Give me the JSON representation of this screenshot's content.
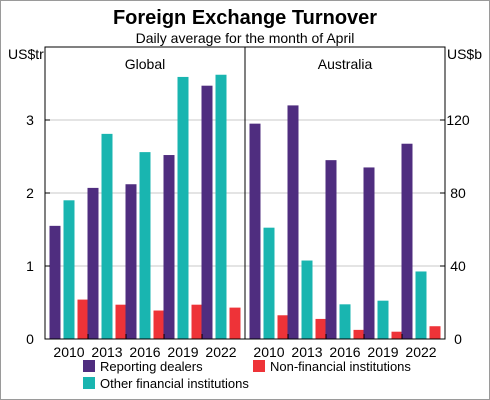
{
  "chart_data": {
    "type": "bar",
    "title": "Foreign Exchange Turnover",
    "subtitle": "Daily average for the month of April",
    "left_axis": {
      "unit": "US$tr",
      "ylim": [
        0,
        4
      ],
      "ticks": [
        0,
        1,
        2,
        3
      ]
    },
    "right_axis": {
      "unit": "US$b",
      "ylim": [
        0,
        160
      ],
      "ticks": [
        0,
        40,
        80,
        120
      ]
    },
    "grid": true,
    "legend_position": "bottom",
    "categories": [
      "2010",
      "2013",
      "2016",
      "2019",
      "2022"
    ],
    "panels": [
      {
        "name": "Global",
        "axis": "left",
        "series": [
          {
            "name": "Reporting dealers",
            "color": "#4f2d7f",
            "values": [
              1.55,
              2.07,
              2.12,
              2.52,
              3.47
            ]
          },
          {
            "name": "Other financial institutions",
            "color": "#19b5b0",
            "values": [
              1.9,
              2.81,
              2.56,
              3.59,
              3.62
            ]
          },
          {
            "name": "Non-financial institutions",
            "color": "#ee3338",
            "values": [
              0.54,
              0.47,
              0.39,
              0.47,
              0.43
            ]
          }
        ]
      },
      {
        "name": "Australia",
        "axis": "right",
        "series": [
          {
            "name": "Reporting dealers",
            "color": "#4f2d7f",
            "values": [
              118,
              128,
              98,
              94,
              107
            ]
          },
          {
            "name": "Other financial institutions",
            "color": "#19b5b0",
            "values": [
              61,
              43,
              19,
              21,
              37
            ]
          },
          {
            "name": "Non-financial institutions",
            "color": "#ee3338",
            "values": [
              13,
              11,
              5,
              4,
              7
            ]
          }
        ]
      }
    ],
    "legend": [
      {
        "label": "Reporting dealers",
        "color": "#4f2d7f"
      },
      {
        "label": "Non-financial institutions",
        "color": "#ee3338"
      },
      {
        "label": "Other financial institutions",
        "color": "#19b5b0"
      }
    ]
  }
}
